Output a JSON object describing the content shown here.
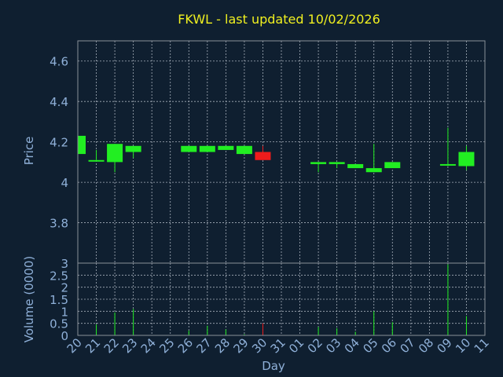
{
  "chart_data": {
    "type": "candlestick",
    "title": "FKWL - last updated 10/02/2026",
    "xlabel": "Day",
    "ylabel": "Price",
    "y2label": "Volume (0000)",
    "ylim": [
      3.6,
      4.7
    ],
    "yticks": [
      "3.8",
      "4",
      "4.2",
      "4.4",
      "4.6"
    ],
    "vol_ylim": [
      0,
      3
    ],
    "vol_yticks": [
      "0",
      "0.5",
      "1",
      "1.5",
      "2",
      "2.5",
      "3"
    ],
    "grid": true,
    "categories": [
      "20",
      "21",
      "22",
      "23",
      "24",
      "25",
      "26",
      "27",
      "28",
      "29",
      "30",
      "31",
      "01",
      "02",
      "03",
      "04",
      "05",
      "06",
      "07",
      "08",
      "09",
      "10",
      "11"
    ],
    "candles": [
      {
        "day": "20",
        "open": 4.14,
        "high": 4.23,
        "low": 4.14,
        "close": 4.23
      },
      {
        "day": "21",
        "open": 4.11,
        "high": 4.16,
        "low": 4.11,
        "close": 4.11
      },
      {
        "day": "22",
        "open": 4.1,
        "high": 4.19,
        "low": 4.05,
        "close": 4.19
      },
      {
        "day": "23",
        "open": 4.15,
        "high": 4.18,
        "low": 4.12,
        "close": 4.18
      },
      {
        "day": "26",
        "open": 4.15,
        "high": 4.18,
        "low": 4.15,
        "close": 4.18
      },
      {
        "day": "27",
        "open": 4.15,
        "high": 4.18,
        "low": 4.15,
        "close": 4.18
      },
      {
        "day": "28",
        "open": 4.16,
        "high": 4.18,
        "low": 4.16,
        "close": 4.18
      },
      {
        "day": "29",
        "open": 4.14,
        "high": 4.18,
        "low": 4.14,
        "close": 4.18
      },
      {
        "day": "30",
        "open": 4.15,
        "high": 4.18,
        "low": 4.11,
        "close": 4.11
      },
      {
        "day": "02",
        "open": 4.09,
        "high": 4.1,
        "low": 4.05,
        "close": 4.1
      },
      {
        "day": "03",
        "open": 4.09,
        "high": 4.1,
        "low": 4.07,
        "close": 4.1
      },
      {
        "day": "04",
        "open": 4.07,
        "high": 4.09,
        "low": 4.07,
        "close": 4.09
      },
      {
        "day": "05",
        "open": 4.05,
        "high": 4.19,
        "low": 4.05,
        "close": 4.07
      },
      {
        "day": "06",
        "open": 4.07,
        "high": 4.1,
        "low": 4.07,
        "close": 4.1
      },
      {
        "day": "09",
        "open": 4.09,
        "high": 4.27,
        "low": 4.08,
        "close": 4.09
      },
      {
        "day": "10",
        "open": 4.08,
        "high": 4.18,
        "low": 4.06,
        "close": 4.15
      }
    ],
    "volume": [
      {
        "day": "20",
        "value": 0.05
      },
      {
        "day": "21",
        "value": 0.45
      },
      {
        "day": "22",
        "value": 0.95
      },
      {
        "day": "23",
        "value": 1.1
      },
      {
        "day": "26",
        "value": 0.2
      },
      {
        "day": "27",
        "value": 0.4
      },
      {
        "day": "28",
        "value": 0.25
      },
      {
        "day": "29",
        "value": 0.05
      },
      {
        "day": "30",
        "value": 0.5
      },
      {
        "day": "02",
        "value": 0.35
      },
      {
        "day": "03",
        "value": 0.3
      },
      {
        "day": "04",
        "value": 0.15
      },
      {
        "day": "05",
        "value": 1.0
      },
      {
        "day": "06",
        "value": 0.55
      },
      {
        "day": "09",
        "value": 2.95
      },
      {
        "day": "10",
        "value": 0.8
      }
    ],
    "colors": {
      "background": "#0f1f30",
      "frame": "#8a9099",
      "grid": "#a7b0bb",
      "text": "#8fb0d8",
      "title": "#f0f020",
      "up": "#22ee22",
      "down": "#ee1c1c"
    }
  }
}
